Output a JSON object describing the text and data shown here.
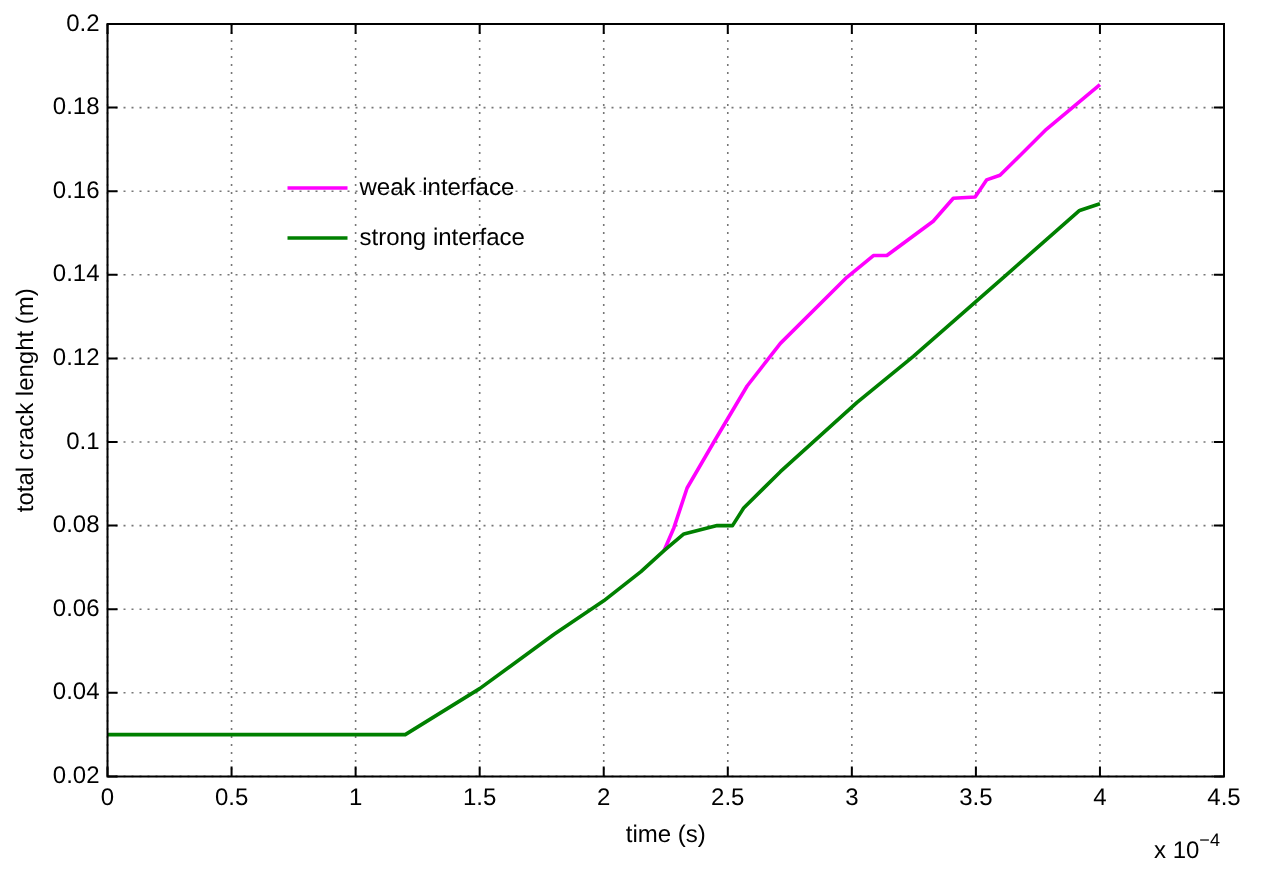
{
  "chart_data": {
    "type": "line",
    "xlabel": "time (s)",
    "ylabel": "total crack lenght (m)",
    "annotations": [
      "x 10$^{−4}$"
    ],
    "xlim": [
      0,
      4.5
    ],
    "xticks": [
      0,
      0.5,
      1,
      1.5,
      2,
      2.5,
      3,
      3.5,
      4,
      4.5
    ],
    "ylim": [
      0.02,
      0.2
    ],
    "yticks": [
      0.02,
      0.04,
      0.06,
      0.08,
      0.1,
      0.12,
      0.14,
      0.16,
      0.18,
      0.2
    ],
    "grid": true,
    "legend": "top left",
    "marker": "none",
    "line_style": "solid",
    "series": [
      {
        "name": "weak interface",
        "color": "#ff00ff",
        "x": [
          2.243,
          2.283,
          2.336,
          2.444,
          2.578,
          2.712,
          2.98,
          3.087,
          3.141,
          3.328,
          3.409,
          3.497,
          3.543,
          3.597,
          3.784,
          4.0
        ],
        "values": [
          0.074,
          0.0795,
          0.089,
          0.1,
          0.1134,
          0.1236,
          0.1394,
          0.1446,
          0.1446,
          0.1528,
          0.1583,
          0.1586,
          0.1627,
          0.1638,
          0.1748,
          0.1855
        ]
      },
      {
        "name": "strong interface",
        "color": "#008000",
        "x": [
          0,
          1.2,
          1.5,
          1.8,
          2.0,
          2.15,
          2.243,
          2.323,
          2.457,
          2.519,
          2.564,
          2.712,
          3.02,
          3.248,
          3.623,
          3.918,
          4.0
        ],
        "values": [
          0.03,
          0.03,
          0.041,
          0.054,
          0.062,
          0.069,
          0.074,
          0.078,
          0.08,
          0.08,
          0.0842,
          0.0929,
          0.1094,
          0.1205,
          0.14,
          0.1554,
          0.157
        ]
      }
    ]
  }
}
